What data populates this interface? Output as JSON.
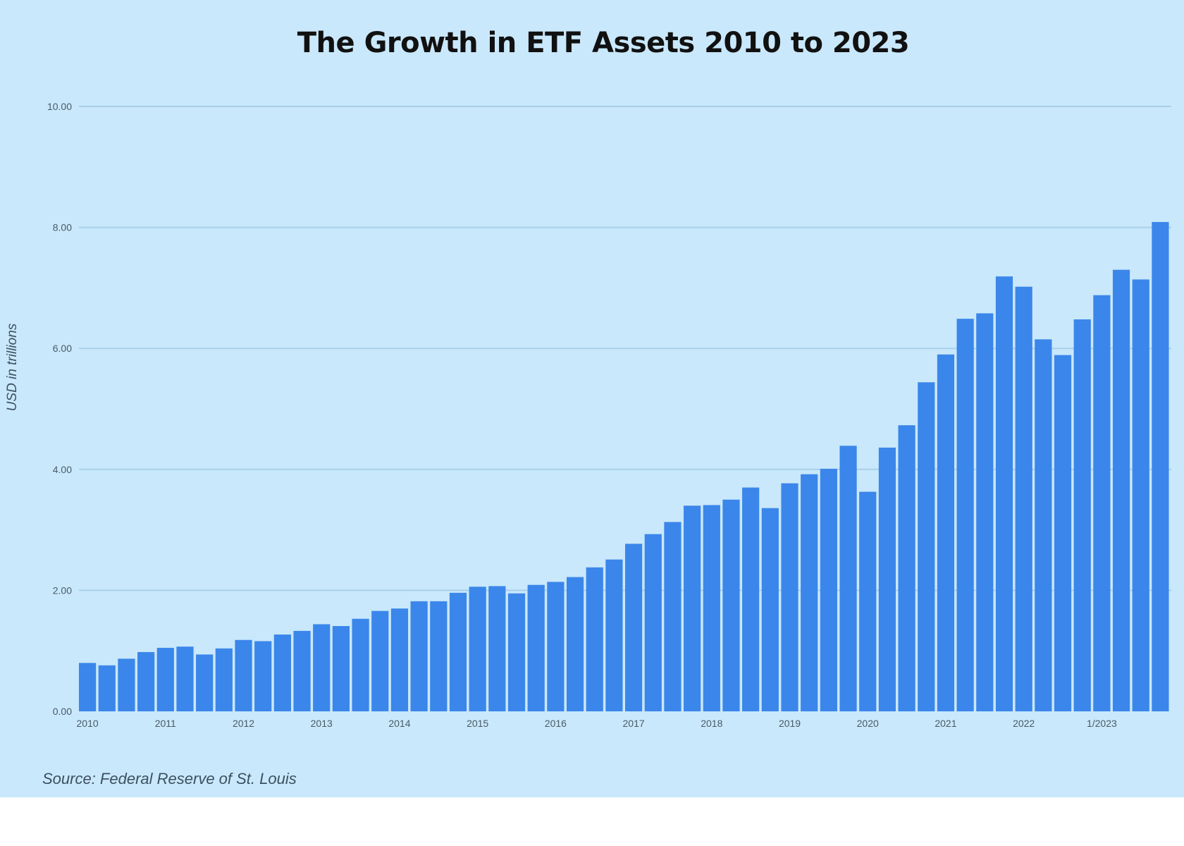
{
  "chart_data": {
    "type": "bar",
    "title": "The Growth in ETF Assets 2010 to 2023",
    "ylabel": "USD in trillions",
    "xlabel": "",
    "source": "Source: Federal Reserve of St. Louis",
    "ylim": [
      0,
      10
    ],
    "yticks": [
      "0.00",
      "2.00",
      "4.00",
      "6.00",
      "8.00",
      "10.00"
    ],
    "grid": true,
    "bar_color": "#3b86ea",
    "background_color": "#c9e8fb",
    "xtick_labels": [
      {
        "index": 0,
        "label": "2010"
      },
      {
        "index": 4,
        "label": "2011"
      },
      {
        "index": 8,
        "label": "2012"
      },
      {
        "index": 12,
        "label": "2013"
      },
      {
        "index": 16,
        "label": "2014"
      },
      {
        "index": 20,
        "label": "2015"
      },
      {
        "index": 24,
        "label": "2016"
      },
      {
        "index": 28,
        "label": "2017"
      },
      {
        "index": 32,
        "label": "2018"
      },
      {
        "index": 36,
        "label": "2019"
      },
      {
        "index": 40,
        "label": "2020"
      },
      {
        "index": 44,
        "label": "2021"
      },
      {
        "index": 48,
        "label": "2022"
      },
      {
        "index": 52,
        "label": "1/2023"
      }
    ],
    "values": [
      0.8,
      0.76,
      0.87,
      0.98,
      1.05,
      1.07,
      0.94,
      1.04,
      1.18,
      1.16,
      1.27,
      1.33,
      1.44,
      1.41,
      1.53,
      1.66,
      1.7,
      1.82,
      1.82,
      1.96,
      2.06,
      2.07,
      1.95,
      2.09,
      2.14,
      2.22,
      2.38,
      2.51,
      2.77,
      2.93,
      3.13,
      3.4,
      3.41,
      3.5,
      3.7,
      3.36,
      3.77,
      3.92,
      4.01,
      4.39,
      3.63,
      4.36,
      4.73,
      5.44,
      5.9,
      6.49,
      6.58,
      7.19,
      7.02,
      6.15,
      5.89,
      6.48,
      6.88,
      7.3,
      7.14,
      8.09
    ]
  }
}
